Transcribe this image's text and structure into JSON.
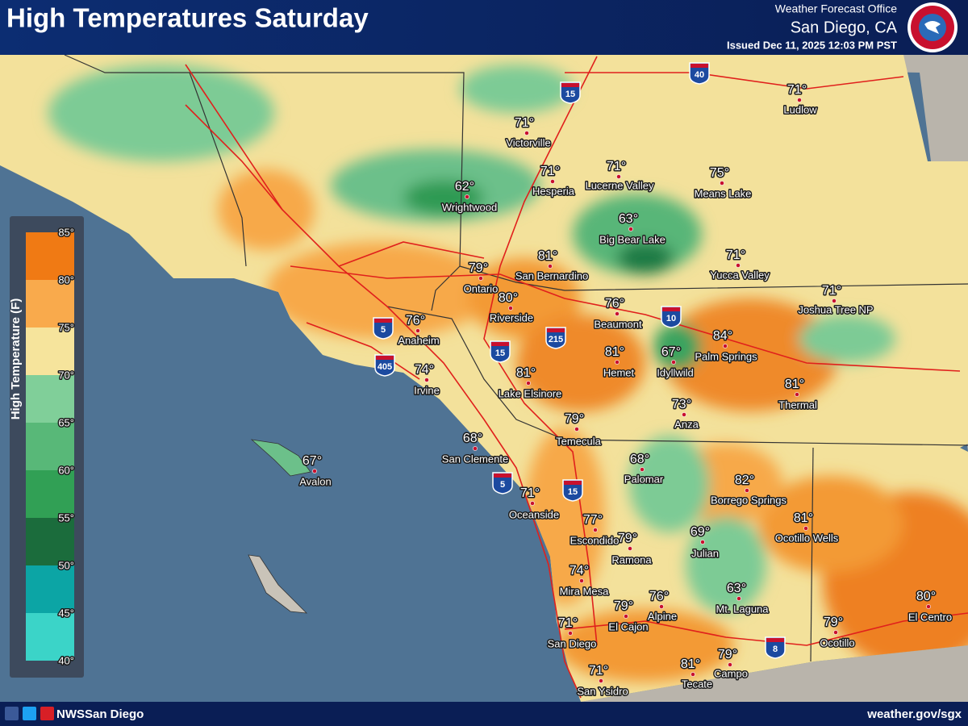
{
  "header": {
    "title": "High Temperatures Saturday",
    "office": "Weather Forecast Office",
    "location": "San Diego, CA",
    "issued": "Issued Dec 11, 2025 12:03 PM PST"
  },
  "legend": {
    "title": "High Temperature (F)",
    "ticks": [
      "85°",
      "80°",
      "75°",
      "70°",
      "65°",
      "60°",
      "55°",
      "50°",
      "45°",
      "40°"
    ],
    "colors": [
      "#f07a14",
      "#f9aa4c",
      "#f6e49c",
      "#80cf99",
      "#58b878",
      "#31a055",
      "#1b6c3c",
      "#0ca5a5",
      "#3bd4c8"
    ]
  },
  "cities": [
    {
      "name": "Ludlow",
      "temp": "71°"
    },
    {
      "name": "Victorville",
      "temp": "71°"
    },
    {
      "name": "Hesperia",
      "temp": "71°"
    },
    {
      "name": "Lucerne Valley",
      "temp": "71°"
    },
    {
      "name": "Means Lake",
      "temp": "75°"
    },
    {
      "name": "Wrightwood",
      "temp": "62°"
    },
    {
      "name": "Big Bear Lake",
      "temp": "63°"
    },
    {
      "name": "San Bernardino",
      "temp": "81°"
    },
    {
      "name": "Yucca Valley",
      "temp": "71°"
    },
    {
      "name": "Ontario",
      "temp": "79°"
    },
    {
      "name": "Joshua Tree NP",
      "temp": "71°"
    },
    {
      "name": "Riverside",
      "temp": "80°"
    },
    {
      "name": "Beaumont",
      "temp": "76°"
    },
    {
      "name": "Anaheim",
      "temp": "76°"
    },
    {
      "name": "Palm Springs",
      "temp": "84°"
    },
    {
      "name": "Hemet",
      "temp": "81°"
    },
    {
      "name": "Idyllwild",
      "temp": "67°"
    },
    {
      "name": "Irvine",
      "temp": "74°"
    },
    {
      "name": "Lake Elsinore",
      "temp": "81°"
    },
    {
      "name": "Thermal",
      "temp": "81°"
    },
    {
      "name": "Anza",
      "temp": "73°"
    },
    {
      "name": "Temecula",
      "temp": "79°"
    },
    {
      "name": "San Clemente",
      "temp": "68°"
    },
    {
      "name": "Avalon",
      "temp": "67°"
    },
    {
      "name": "Palomar",
      "temp": "68°"
    },
    {
      "name": "Borrego Springs",
      "temp": "82°"
    },
    {
      "name": "Oceanside",
      "temp": "71°"
    },
    {
      "name": "Ocotillo Wells",
      "temp": "81°"
    },
    {
      "name": "Escondido",
      "temp": "77°"
    },
    {
      "name": "Julian",
      "temp": "69°"
    },
    {
      "name": "Ramona",
      "temp": "79°"
    },
    {
      "name": "Mira Mesa",
      "temp": "74°"
    },
    {
      "name": "Mt. Laguna",
      "temp": "63°"
    },
    {
      "name": "Alpine",
      "temp": "76°"
    },
    {
      "name": "El Cajon",
      "temp": "79°"
    },
    {
      "name": "El Centro",
      "temp": "80°"
    },
    {
      "name": "Ocotillo",
      "temp": "79°"
    },
    {
      "name": "San Diego",
      "temp": "71°"
    },
    {
      "name": "San Ysidro",
      "temp": "71°"
    },
    {
      "name": "Tecate",
      "temp": "81°"
    },
    {
      "name": "Campo",
      "temp": "79°"
    }
  ],
  "highways": [
    "40",
    "15",
    "10",
    "5",
    "215",
    "15",
    "405",
    "5",
    "15",
    "8"
  ],
  "footer": {
    "social": "NWSSan Diego",
    "website": "weather.gov/sgx"
  }
}
